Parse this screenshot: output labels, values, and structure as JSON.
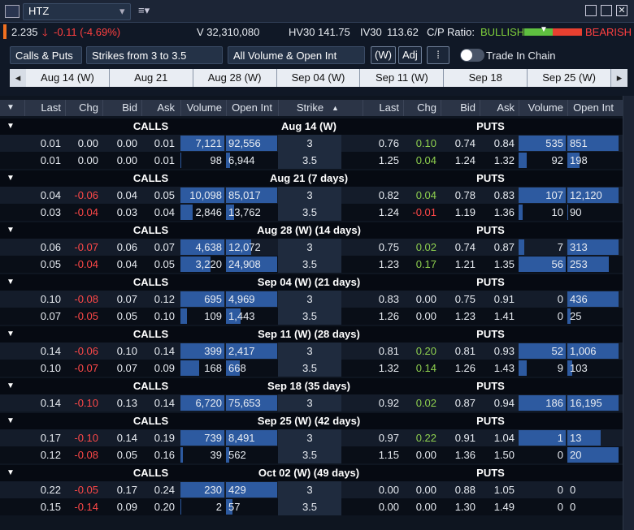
{
  "window": {
    "symbol": "HTZ"
  },
  "quote": {
    "last": "2.235",
    "change": "-0.11 (-4.69%)",
    "volume": "V 32,310,080",
    "hv30_label": "HV30",
    "hv30": "141.75",
    "iv30_label": "IV30",
    "iv30": "113.62",
    "cp_label": "C/P Ratio:",
    "bullish": "BULLISH",
    "bearish": "BEARISH"
  },
  "toolbar": {
    "filters": [
      "Calls & Puts",
      "Strikes from 3 to 3.5",
      "All Volume & Open Int"
    ],
    "buttons": [
      "(W)",
      "Adj"
    ],
    "toggle": "Trade In Chain"
  },
  "expiry_tabs": [
    "Aug 14 (W)",
    "Aug 21",
    "Aug 28 (W)",
    "Sep 04 (W)",
    "Sep 11 (W)",
    "Sep 18",
    "Sep 25 (W)"
  ],
  "columns": {
    "calls": [
      "Last",
      "Chg",
      "Bid",
      "Ask",
      "Volume",
      "Open Int"
    ],
    "strike": "Strike",
    "puts": [
      "Last",
      "Chg",
      "Bid",
      "Ask",
      "Volume",
      "Open Int"
    ]
  },
  "groups": [
    {
      "calls_label": "CALLS",
      "title": "Aug 14 (W)",
      "puts_label": "PUTS",
      "rows": [
        {
          "calls": [
            "0.01",
            "0.00",
            "0.00",
            "0.01",
            "7,121",
            "92,556"
          ],
          "strike": "3",
          "puts": [
            "0.76",
            "0.10",
            "0.74",
            "0.84",
            "535",
            "851"
          ]
        },
        {
          "calls": [
            "0.01",
            "0.00",
            "0.00",
            "0.01",
            "98",
            "6,944"
          ],
          "strike": "3.5",
          "puts": [
            "1.25",
            "0.04",
            "1.24",
            "1.32",
            "92",
            "198"
          ]
        }
      ]
    },
    {
      "calls_label": "CALLS",
      "title": "Aug 21 (7 days)",
      "puts_label": "PUTS",
      "rows": [
        {
          "calls": [
            "0.04",
            "-0.06",
            "0.04",
            "0.05",
            "10,098",
            "85,017"
          ],
          "strike": "3",
          "puts": [
            "0.82",
            "0.04",
            "0.78",
            "0.83",
            "107",
            "12,120"
          ]
        },
        {
          "calls": [
            "0.03",
            "-0.04",
            "0.03",
            "0.04",
            "2,846",
            "13,762"
          ],
          "strike": "3.5",
          "puts": [
            "1.24",
            "-0.01",
            "1.19",
            "1.36",
            "10",
            "90"
          ]
        }
      ]
    },
    {
      "calls_label": "CALLS",
      "title": "Aug 28 (W) (14 days)",
      "puts_label": "PUTS",
      "rows": [
        {
          "calls": [
            "0.06",
            "-0.07",
            "0.06",
            "0.07",
            "4,638",
            "12,072"
          ],
          "strike": "3",
          "puts": [
            "0.75",
            "0.02",
            "0.74",
            "0.87",
            "7",
            "313"
          ]
        },
        {
          "calls": [
            "0.05",
            "-0.04",
            "0.04",
            "0.05",
            "3,220",
            "24,908"
          ],
          "strike": "3.5",
          "puts": [
            "1.23",
            "0.17",
            "1.21",
            "1.35",
            "56",
            "253"
          ]
        }
      ]
    },
    {
      "calls_label": "CALLS",
      "title": "Sep 04 (W) (21 days)",
      "puts_label": "PUTS",
      "rows": [
        {
          "calls": [
            "0.10",
            "-0.08",
            "0.07",
            "0.12",
            "695",
            "4,969"
          ],
          "strike": "3",
          "puts": [
            "0.83",
            "0.00",
            "0.75",
            "0.91",
            "0",
            "436"
          ]
        },
        {
          "calls": [
            "0.07",
            "-0.05",
            "0.05",
            "0.10",
            "109",
            "1,443"
          ],
          "strike": "3.5",
          "puts": [
            "1.26",
            "0.00",
            "1.23",
            "1.41",
            "0",
            "25"
          ]
        }
      ]
    },
    {
      "calls_label": "CALLS",
      "title": "Sep 11 (W) (28 days)",
      "puts_label": "PUTS",
      "rows": [
        {
          "calls": [
            "0.14",
            "-0.06",
            "0.10",
            "0.14",
            "399",
            "2,417"
          ],
          "strike": "3",
          "puts": [
            "0.81",
            "0.20",
            "0.81",
            "0.93",
            "52",
            "1,006"
          ]
        },
        {
          "calls": [
            "0.10",
            "-0.07",
            "0.07",
            "0.09",
            "168",
            "668"
          ],
          "strike": "3.5",
          "puts": [
            "1.32",
            "0.14",
            "1.26",
            "1.43",
            "9",
            "103"
          ]
        }
      ]
    },
    {
      "calls_label": "CALLS",
      "title": "Sep 18 (35 days)",
      "puts_label": "PUTS",
      "rows": [
        {
          "calls": [
            "0.14",
            "-0.10",
            "0.13",
            "0.14",
            "6,720",
            "75,653"
          ],
          "strike": "3",
          "puts": [
            "0.92",
            "0.02",
            "0.87",
            "0.94",
            "186",
            "16,195"
          ]
        }
      ]
    },
    {
      "calls_label": "CALLS",
      "title": "Sep 25 (W) (42 days)",
      "puts_label": "PUTS",
      "rows": [
        {
          "calls": [
            "0.17",
            "-0.10",
            "0.14",
            "0.19",
            "739",
            "8,491"
          ],
          "strike": "3",
          "puts": [
            "0.97",
            "0.22",
            "0.91",
            "1.04",
            "1",
            "13"
          ]
        },
        {
          "calls": [
            "0.12",
            "-0.08",
            "0.05",
            "0.16",
            "39",
            "562"
          ],
          "strike": "3.5",
          "puts": [
            "1.15",
            "0.00",
            "1.36",
            "1.50",
            "0",
            "20"
          ]
        }
      ]
    },
    {
      "calls_label": "CALLS",
      "title": "Oct 02 (W) (49 days)",
      "puts_label": "PUTS",
      "rows": [
        {
          "calls": [
            "0.22",
            "-0.05",
            "0.17",
            "0.24",
            "230",
            "429"
          ],
          "strike": "3",
          "puts": [
            "0.00",
            "0.00",
            "0.88",
            "1.05",
            "0",
            "0"
          ]
        },
        {
          "calls": [
            "0.15",
            "-0.14",
            "0.09",
            "0.20",
            "2",
            "57"
          ],
          "strike": "3.5",
          "puts": [
            "0.00",
            "0.00",
            "1.30",
            "1.49",
            "0",
            "0"
          ]
        }
      ]
    }
  ]
}
